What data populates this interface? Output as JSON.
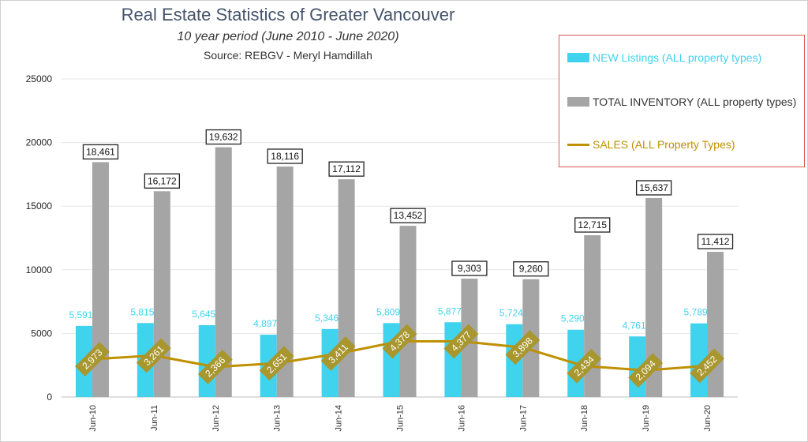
{
  "chart_data": {
    "type": "bar",
    "title": "Real Estate Statistics of Greater Vancouver",
    "subtitle": "10 year period  (June 2010 - June 2020)",
    "source": "Source: REBGV  - Meryl Hamdillah",
    "categories": [
      "Jun-10",
      "Jun-11",
      "Jun-12",
      "Jun-13",
      "Jun-14",
      "Jun-15",
      "Jun-16",
      "Jun-17",
      "Jun-18",
      "Jun-19",
      "Jun-20"
    ],
    "ylim": [
      0,
      25000
    ],
    "yticks": [
      "0",
      "5000",
      "10000",
      "15000",
      "20000",
      "25000"
    ],
    "ytick_values": [
      0,
      5000,
      10000,
      15000,
      20000,
      25000
    ],
    "grid": true,
    "legend_position": "top-right",
    "series": [
      {
        "name": "NEW Listings (ALL property types)",
        "kind": "bar",
        "color": "#3fd3ee",
        "values": [
          5591,
          5815,
          5645,
          4897,
          5346,
          5809,
          5877,
          5724,
          5290,
          4761,
          5789
        ],
        "labels": [
          "5,591",
          "5,815",
          "5,645",
          "4,897",
          "5,346",
          "5,809",
          "5,877",
          "5,724",
          "5,290",
          "4,761",
          "5,789"
        ]
      },
      {
        "name": "TOTAL INVENTORY (ALL property types)",
        "kind": "bar",
        "color": "#a5a5a5",
        "values": [
          18461,
          16172,
          19632,
          18116,
          17112,
          13452,
          9303,
          9260,
          12715,
          15637,
          11412
        ],
        "labels": [
          "18,461",
          "16,172",
          "19,632",
          "18,116",
          "17,112",
          "13,452",
          "9,303",
          "9,260",
          "12,715",
          "15,637",
          "11,412"
        ]
      },
      {
        "name": "SALES (ALL Property Types)",
        "kind": "line",
        "color": "#bf9000",
        "label_bg": "#a8962e",
        "values": [
          2973,
          3261,
          2366,
          2651,
          3411,
          4378,
          4377,
          3898,
          2434,
          2094,
          2452
        ],
        "labels": [
          "2,973",
          "3,261",
          "2,366",
          "2,651",
          "3,411",
          "4,378",
          "4,377",
          "3,898",
          "2,434",
          "2,094",
          "2,452"
        ]
      }
    ]
  }
}
